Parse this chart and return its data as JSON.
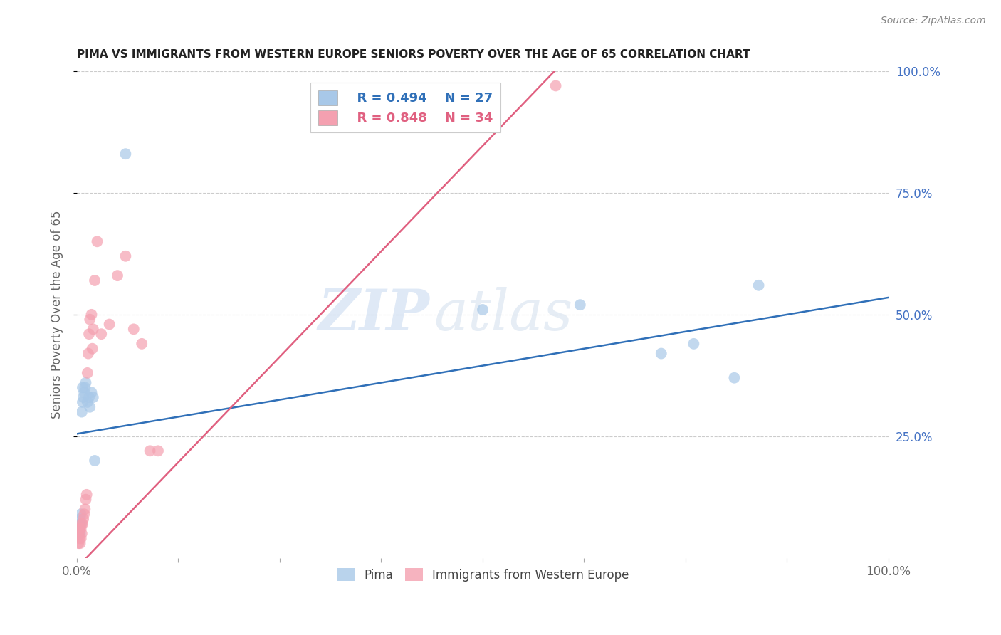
{
  "title": "PIMA VS IMMIGRANTS FROM WESTERN EUROPE SENIORS POVERTY OVER THE AGE OF 65 CORRELATION CHART",
  "source": "Source: ZipAtlas.com",
  "ylabel": "Seniors Poverty Over the Age of 65",
  "pima_R": 0.494,
  "pima_N": 27,
  "west_europe_R": 0.848,
  "west_europe_N": 34,
  "pima_color": "#a8c8e8",
  "west_europe_color": "#f4a0b0",
  "pima_line_color": "#3070b8",
  "west_europe_line_color": "#e06080",
  "background_color": "#ffffff",
  "watermark_zip": "ZIP",
  "watermark_atlas": "atlas",
  "xlim": [
    0,
    1
  ],
  "ylim": [
    0,
    1
  ],
  "pima_x": [
    0.002,
    0.003,
    0.003,
    0.004,
    0.004,
    0.005,
    0.005,
    0.006,
    0.007,
    0.007,
    0.008,
    0.009,
    0.01,
    0.011,
    0.013,
    0.015,
    0.016,
    0.018,
    0.02,
    0.022,
    0.06,
    0.5,
    0.62,
    0.72,
    0.76,
    0.81,
    0.84
  ],
  "pima_y": [
    0.05,
    0.06,
    0.07,
    0.05,
    0.08,
    0.07,
    0.09,
    0.3,
    0.32,
    0.35,
    0.33,
    0.34,
    0.35,
    0.36,
    0.32,
    0.33,
    0.31,
    0.34,
    0.33,
    0.2,
    0.83,
    0.51,
    0.52,
    0.42,
    0.44,
    0.37,
    0.56
  ],
  "we_x": [
    0.002,
    0.003,
    0.003,
    0.004,
    0.004,
    0.005,
    0.005,
    0.006,
    0.006,
    0.007,
    0.008,
    0.009,
    0.01,
    0.011,
    0.012,
    0.013,
    0.014,
    0.015,
    0.016,
    0.018,
    0.019,
    0.02,
    0.022,
    0.025,
    0.03,
    0.04,
    0.05,
    0.06,
    0.07,
    0.08,
    0.09,
    0.1,
    0.49,
    0.59
  ],
  "we_y": [
    0.03,
    0.04,
    0.05,
    0.03,
    0.06,
    0.04,
    0.06,
    0.05,
    0.07,
    0.07,
    0.08,
    0.09,
    0.1,
    0.12,
    0.13,
    0.38,
    0.42,
    0.46,
    0.49,
    0.5,
    0.43,
    0.47,
    0.57,
    0.65,
    0.46,
    0.48,
    0.58,
    0.62,
    0.47,
    0.44,
    0.22,
    0.22,
    0.96,
    0.97
  ],
  "pima_line": [
    0.0,
    0.255,
    1.0,
    0.535
  ],
  "we_line": [
    0.0,
    -0.02,
    0.6,
    1.02
  ]
}
